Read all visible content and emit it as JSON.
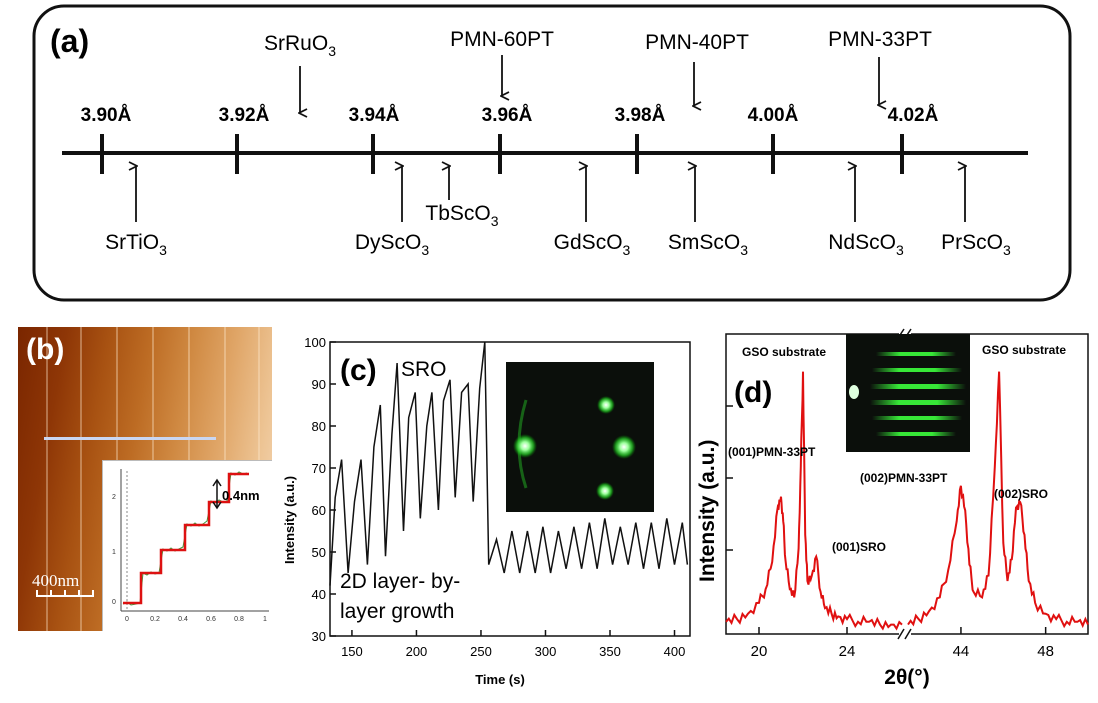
{
  "panel_a": {
    "label": "(a)",
    "ticks": [
      "3.90Å",
      "3.92Å",
      "3.94Å",
      "3.96Å",
      "3.98Å",
      "4.00Å",
      "4.02Å"
    ],
    "above": [
      {
        "base": "SrRuO",
        "sub": "3"
      },
      {
        "base": "PMN-60PT",
        "sub": ""
      },
      {
        "base": "PMN-40PT",
        "sub": ""
      },
      {
        "base": "PMN-33PT",
        "sub": ""
      }
    ],
    "below": [
      {
        "base": "SrTiO",
        "sub": "3"
      },
      {
        "base": "DySc",
        "mid": "O",
        "sub": "3"
      },
      {
        "base": "TbScO",
        "sub": "3"
      },
      {
        "base": "GdScO",
        "sub": "3"
      },
      {
        "base": "SmScO",
        "sub": "3"
      },
      {
        "base": "NdScO",
        "sub": "3"
      },
      {
        "base": "PrScO",
        "sub": "3"
      }
    ]
  },
  "panel_b": {
    "label": "(b)",
    "scalebar": "400nm",
    "inset_step_label": "0.4nm",
    "inset_yticks": [
      "0",
      "1",
      "2"
    ],
    "inset_xticks": [
      "0",
      "0.2",
      "0.4",
      "0.6",
      "0.8",
      "1"
    ]
  },
  "panel_c": {
    "label": "(c)",
    "annotation_top": "SRO",
    "annotation_bottom": [
      "2D layer- by-",
      "layer growth"
    ],
    "ylabel": "Intensity (a.u.)",
    "xlabel": "Time (s)",
    "xticks": [
      "150",
      "200",
      "250",
      "300",
      "350",
      "400"
    ],
    "yticks": [
      "30",
      "40",
      "50",
      "60",
      "70",
      "80",
      "90",
      "100"
    ]
  },
  "panel_d": {
    "label": "(d)",
    "ylabel": "Intensity (a.u.)",
    "xlabel": "2θ(°)",
    "xticks": [
      "20",
      "24",
      "44",
      "48"
    ],
    "peak_labels": [
      "GSO substrate",
      "GSO substrate",
      "(001)PMN-33PT",
      "(001)SRO",
      "(002)PMN-33PT",
      "(002)SRO"
    ]
  },
  "colors": {
    "rheed_green": "#3cff3c",
    "xrd_red": "#e01010",
    "axis": "#111111"
  },
  "chart_data": [
    {
      "type": "line",
      "panel": "(c)",
      "title": "",
      "xlabel": "Time (s)",
      "ylabel": "Intensity (a.u.)",
      "xlim": [
        133,
        412
      ],
      "ylim": [
        30,
        100
      ],
      "grid": false,
      "series": [
        {
          "name": "",
          "x": [
            133,
            137,
            142,
            147,
            152,
            157,
            162,
            167,
            172,
            176,
            181,
            185,
            190,
            194,
            199,
            203,
            208,
            212,
            217,
            221,
            226,
            230,
            235,
            240,
            244,
            249,
            253
          ],
          "y": [
            42,
            63,
            72,
            45,
            62,
            72,
            47,
            75,
            85,
            49,
            78,
            95,
            55,
            82,
            88,
            58,
            80,
            88,
            60,
            86,
            91,
            63,
            88,
            90,
            62,
            89,
            100
          ]
        },
        {
          "name": "",
          "x": [
            253,
            256,
            262,
            268,
            274,
            280,
            286,
            292,
            298,
            304,
            310,
            316,
            322,
            328,
            334,
            340,
            346,
            352,
            358,
            364,
            370,
            376,
            382,
            388,
            394,
            400,
            406,
            410
          ],
          "y": [
            100,
            47,
            53,
            45,
            55,
            45,
            55,
            45,
            56,
            45,
            55,
            46,
            56,
            46,
            57,
            46,
            58,
            47,
            56,
            47,
            57,
            46,
            57,
            46,
            58,
            47,
            57,
            47
          ]
        }
      ]
    },
    {
      "type": "line",
      "panel": "(d)",
      "title": "",
      "xlabel": "2θ(°)",
      "ylabel": "Intensity (a.u.)",
      "xlim": [
        18.5,
        26.5
      ],
      "x_break": [
        26.5,
        41.5
      ],
      "xlim_right": [
        41.5,
        50
      ],
      "grid": false,
      "series": [
        {
          "name": "",
          "x": [
            18.5,
            19,
            19.5,
            20,
            20.3,
            20.6,
            20.85,
            21,
            21.1,
            21.2,
            21.4,
            21.6,
            21.8,
            21.9,
            22,
            22.1,
            22.2,
            22.4,
            22.6,
            22.8,
            23,
            23.3,
            23.6,
            24,
            24.5,
            25,
            25.5,
            26,
            26.5
          ],
          "y": [
            3,
            4,
            6,
            10,
            15,
            25,
            45,
            49,
            40,
            26,
            15,
            12,
            30,
            60,
            95,
            35,
            18,
            20,
            27,
            14,
            8,
            6,
            5,
            4,
            3,
            3,
            2,
            2,
            2
          ]
        },
        {
          "name": "",
          "x": [
            41.5,
            42,
            42.5,
            43,
            43.4,
            43.8,
            44,
            44.2,
            44.4,
            44.6,
            45,
            45.3,
            45.6,
            45.8,
            46,
            46.2,
            46.4,
            46.6,
            46.8,
            47,
            47.2,
            47.5,
            48,
            48.5,
            49,
            49.5,
            50
          ],
          "y": [
            2,
            4,
            7,
            12,
            22,
            40,
            53,
            44,
            24,
            14,
            12,
            20,
            60,
            95,
            32,
            18,
            26,
            45,
            47,
            35,
            18,
            10,
            6,
            4,
            3,
            3,
            2
          ]
        }
      ]
    }
  ]
}
